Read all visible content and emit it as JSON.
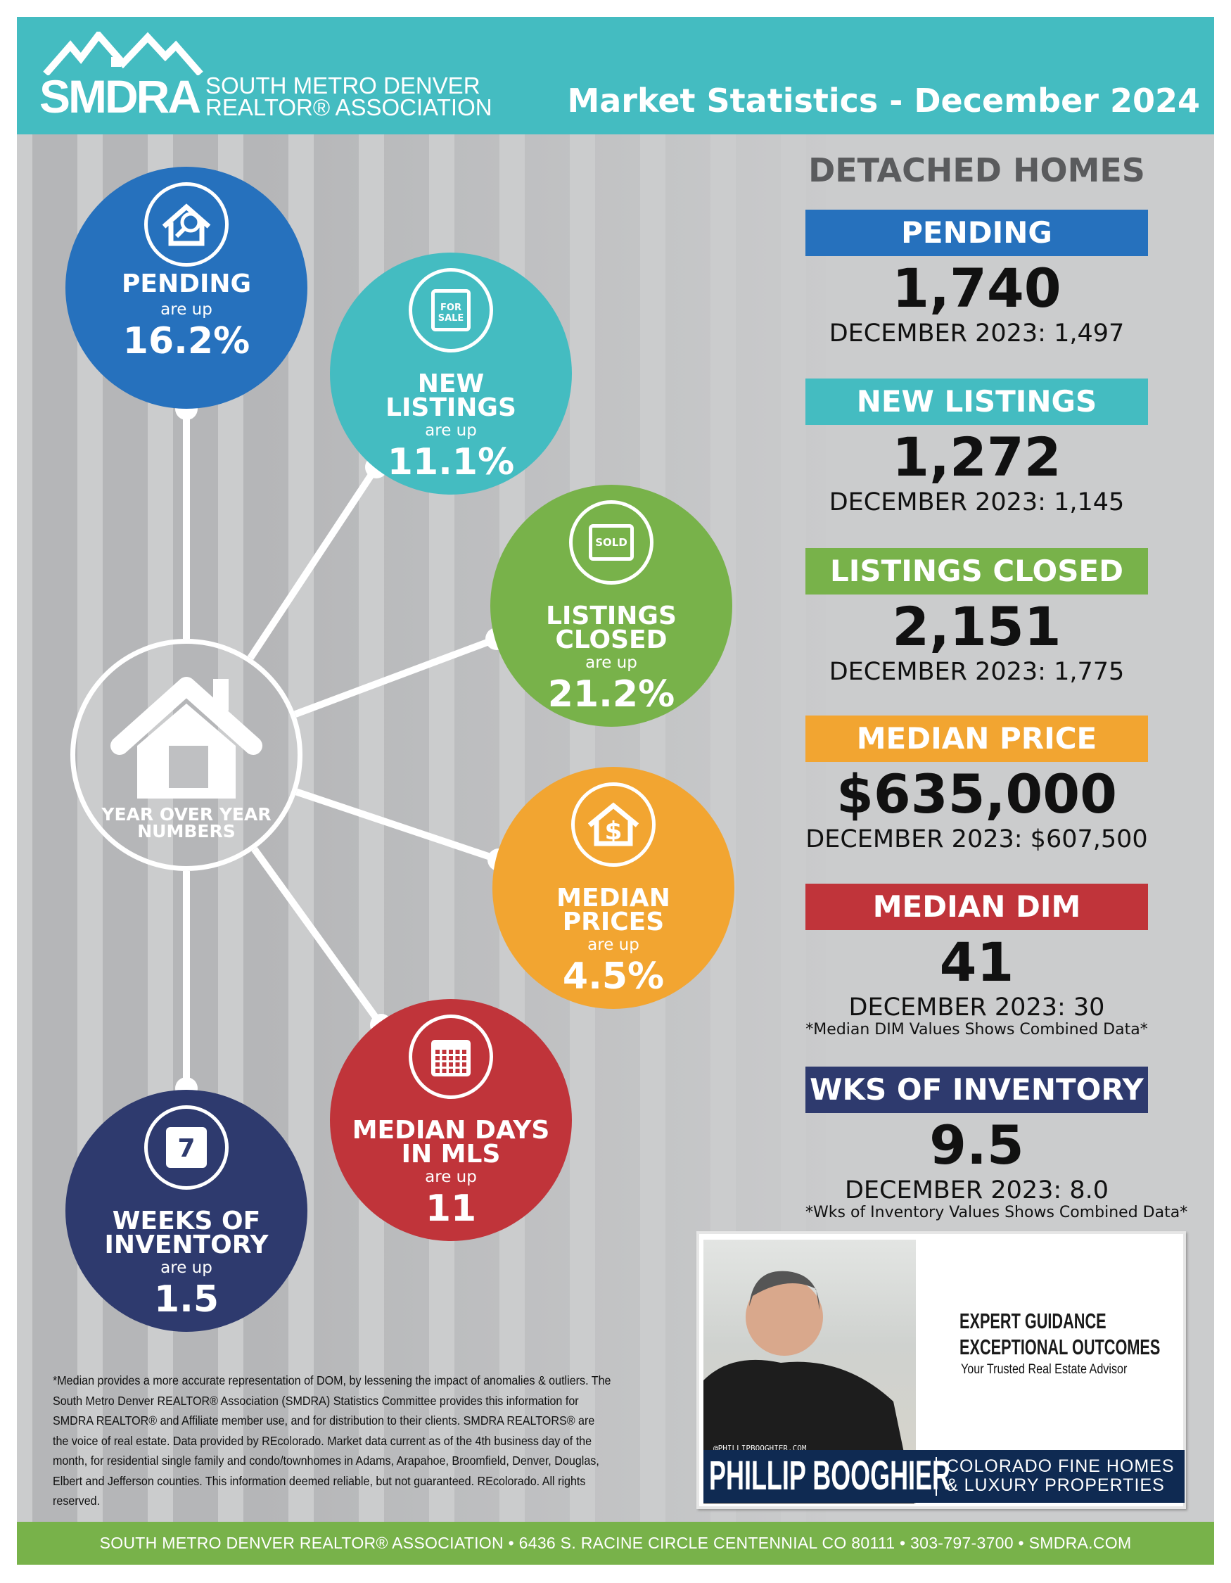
{
  "header": {
    "logo_abbr": "SMDRA",
    "logo_line1": "SOUTH METRO DENVER",
    "logo_line2": "REALTOR® ASSOCIATION",
    "title": "Market Statistics - December 2024"
  },
  "colors": {
    "teal": "#44bcc1",
    "blue": "#2671bd",
    "green": "#78b24a",
    "orange": "#f2a531",
    "red": "#c0343a",
    "navy": "#2e3a6e",
    "background": "#cbcccd"
  },
  "hub": {
    "label_line1": "YEAR OVER YEAR",
    "label_line2": "NUMBERS",
    "icon": "house-icon"
  },
  "circles": [
    {
      "title1": "PENDING",
      "title2": "",
      "change": "are up",
      "value": "16.2%",
      "icon": "house-search-icon"
    },
    {
      "title1": "NEW",
      "title2": "LISTINGS",
      "change": "are up",
      "value": "11.1%",
      "icon": "for-sale-sign-icon",
      "sign": "FOR SALE"
    },
    {
      "title1": "LISTINGS",
      "title2": "CLOSED",
      "change": "are up",
      "value": "21.2%",
      "icon": "sold-sign-icon",
      "sign": "SOLD"
    },
    {
      "title1": "MEDIAN",
      "title2": "PRICES",
      "change": "are up",
      "value": "4.5%",
      "icon": "house-dollar-icon"
    },
    {
      "title1": "MEDIAN DAYS",
      "title2": "IN MLS",
      "change": "are up",
      "value": "11",
      "icon": "calendar-grid-icon"
    },
    {
      "title1": "WEEKS OF",
      "title2": "INVENTORY",
      "change": "are up",
      "value": "1.5",
      "icon": "calendar-7-icon",
      "day": "7"
    }
  ],
  "detached": {
    "title": "DETACHED HOMES",
    "stats": [
      {
        "label": "PENDING",
        "value": "1,740",
        "prior": "DECEMBER 2023: 1,497",
        "note": ""
      },
      {
        "label": "NEW LISTINGS",
        "value": "1,272",
        "prior": "DECEMBER 2023: 1,145",
        "note": ""
      },
      {
        "label": "LISTINGS CLOSED",
        "value": "2,151",
        "prior": "DECEMBER 2023: 1,775",
        "note": ""
      },
      {
        "label": "MEDIAN PRICE",
        "value": "$635,000",
        "prior": "DECEMBER 2023: $607,500",
        "note": ""
      },
      {
        "label": "MEDIAN DIM",
        "value": "41",
        "prior": "DECEMBER 2023: 30",
        "note": "*Median DIM Values Shows Combined Data*"
      },
      {
        "label": "WKS OF INVENTORY",
        "value": "9.5",
        "prior": "DECEMBER 2023: 8.0",
        "note": "*Wks of Inventory Values Shows Combined Data*"
      }
    ]
  },
  "disclaimer": "*Median provides a more accurate representation of DOM, by lessening the impact of anomalies & outliers. The South Metro Denver REALTOR® Association (SMDRA) Statistics Committee provides this information for SMDRA REALTOR® and Affiliate member use, and for distribution to their clients. SMDRA REALTORS® are the voice of real estate. Data provided by REcolorado. Market data current as of the 4th business day of the month, for residential single family and condo/townhomes in Adams, Arapahoe, Broomfield, Denver, Douglas, Elbert and Jefferson counties. This information deemed reliable, but not guaranteed. REcolorado. All rights reserved.",
  "agent": {
    "tagline1": "EXPERT GUIDANCE",
    "tagline2": "EXCEPTIONAL OUTCOMES",
    "tagline3": "Your Trusted Real Estate Advisor",
    "website": "@PHILLIPBOOGHIER.COM",
    "name": "PHILLIP BOOGHIER",
    "firm1": "COLORADO FINE HOMES",
    "firm2": "& LUXURY PROPERTIES"
  },
  "footer": "SOUTH METRO DENVER REALTOR® ASSOCIATION • 6436 S. RACINE CIRCLE CENTENNIAL CO 80111 • 303-797-3700 • SMDRA.COM"
}
